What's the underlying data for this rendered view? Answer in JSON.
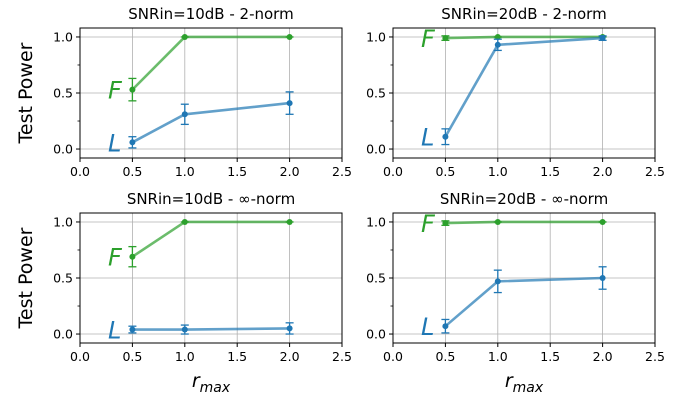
{
  "colors": {
    "F": "#2ca02c",
    "L": "#1f77b4",
    "grid": "#b0b0b0"
  },
  "chart_data": [
    {
      "type": "line",
      "title": "SNRin=10dB - 2-norm",
      "ylabel": "Test Power",
      "xlabel": "",
      "xlim": [
        0,
        2.5
      ],
      "ylim": [
        -0.08,
        1.08
      ],
      "xticks": [
        "0.0",
        "0.5",
        "1.0",
        "1.5",
        "2.0",
        "2.5"
      ],
      "yticks": [
        "0.0",
        "0.5",
        "1.0"
      ],
      "grid": true,
      "series": [
        {
          "name": "F",
          "x": [
            0.5,
            1.0,
            2.0
          ],
          "values": [
            0.53,
            1.0,
            1.0
          ],
          "err": [
            0.1,
            0.0,
            0.0
          ]
        },
        {
          "name": "L",
          "x": [
            0.5,
            1.0,
            2.0
          ],
          "values": [
            0.06,
            0.31,
            0.41
          ],
          "err": [
            0.05,
            0.09,
            0.1
          ]
        }
      ]
    },
    {
      "type": "line",
      "title": "SNRin=20dB - 2-norm",
      "ylabel": "",
      "xlabel": "",
      "xlim": [
        0,
        2.5
      ],
      "ylim": [
        -0.08,
        1.08
      ],
      "xticks": [
        "0.0",
        "0.5",
        "1.0",
        "1.5",
        "2.0",
        "2.5"
      ],
      "yticks": [
        "0.0",
        "0.5",
        "1.0"
      ],
      "grid": true,
      "series": [
        {
          "name": "F",
          "x": [
            0.5,
            1.0,
            2.0
          ],
          "values": [
            0.99,
            1.0,
            1.0
          ],
          "err": [
            0.02,
            0.0,
            0.0
          ]
        },
        {
          "name": "L",
          "x": [
            0.5,
            1.0,
            2.0
          ],
          "values": [
            0.11,
            0.93,
            0.99
          ],
          "err": [
            0.07,
            0.05,
            0.02
          ]
        }
      ]
    },
    {
      "type": "line",
      "title": "SNRin=10dB - ∞-norm",
      "ylabel": "Test Power",
      "xlabel": "r_max",
      "xlim": [
        0,
        2.5
      ],
      "ylim": [
        -0.08,
        1.08
      ],
      "xticks": [
        "0.0",
        "0.5",
        "1.0",
        "1.5",
        "2.0",
        "2.5"
      ],
      "yticks": [
        "0.0",
        "0.5",
        "1.0"
      ],
      "grid": true,
      "series": [
        {
          "name": "F",
          "x": [
            0.5,
            1.0,
            2.0
          ],
          "values": [
            0.69,
            1.0,
            1.0
          ],
          "err": [
            0.09,
            0.0,
            0.0
          ]
        },
        {
          "name": "L",
          "x": [
            0.5,
            1.0,
            2.0
          ],
          "values": [
            0.04,
            0.04,
            0.05
          ],
          "err": [
            0.03,
            0.04,
            0.05
          ]
        }
      ]
    },
    {
      "type": "line",
      "title": "SNRin=20dB - ∞-norm",
      "ylabel": "",
      "xlabel": "r_max",
      "xlim": [
        0,
        2.5
      ],
      "ylim": [
        -0.08,
        1.08
      ],
      "xticks": [
        "0.0",
        "0.5",
        "1.0",
        "1.5",
        "2.0",
        "2.5"
      ],
      "yticks": [
        "0.0",
        "0.5",
        "1.0"
      ],
      "grid": true,
      "series": [
        {
          "name": "F",
          "x": [
            0.5,
            1.0,
            2.0
          ],
          "values": [
            0.99,
            1.0,
            1.0
          ],
          "err": [
            0.02,
            0.0,
            0.0
          ]
        },
        {
          "name": "L",
          "x": [
            0.5,
            1.0,
            2.0
          ],
          "values": [
            0.07,
            0.47,
            0.5
          ],
          "err": [
            0.06,
            0.1,
            0.1
          ]
        }
      ]
    }
  ]
}
